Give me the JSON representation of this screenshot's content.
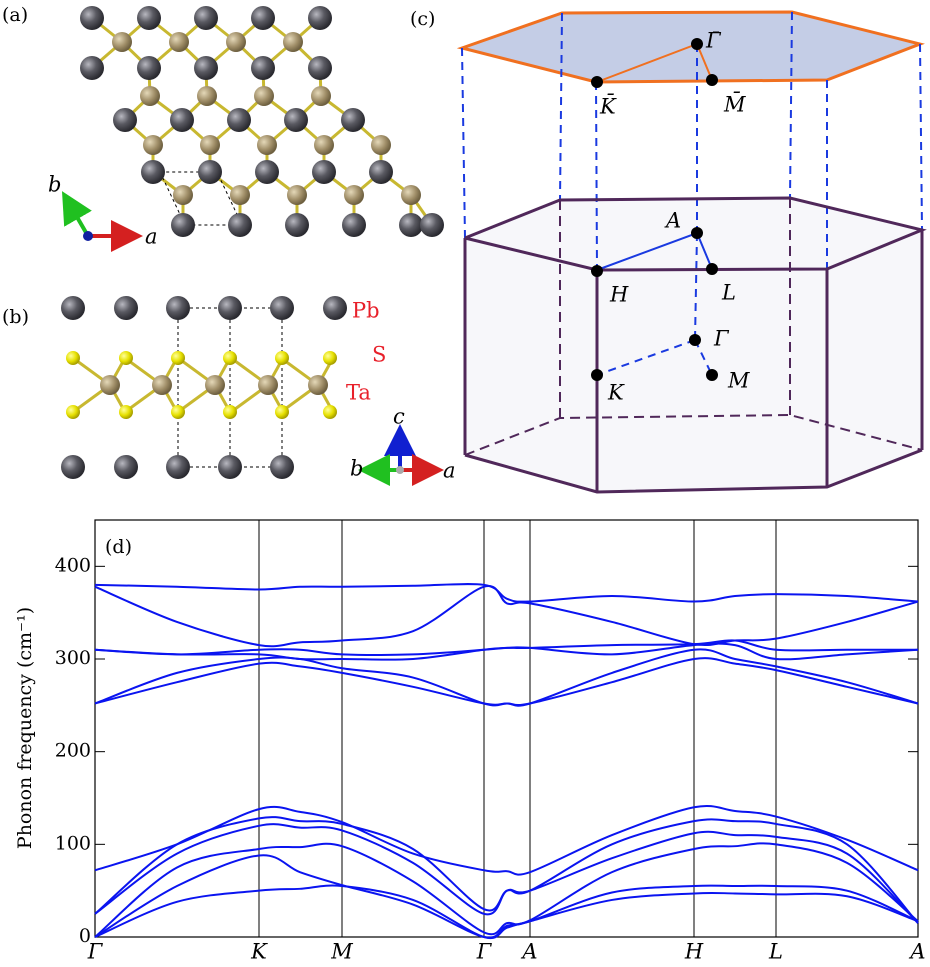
{
  "panels": {
    "a": {
      "label": "(a)",
      "axis_a": "a",
      "axis_b": "b"
    },
    "b": {
      "label": "(b)",
      "elements": [
        "Pb",
        "S",
        "Ta"
      ],
      "axis_c": "c",
      "axis_b": "b",
      "axis_a": "a"
    },
    "c": {
      "label": "(c)",
      "surface_points": [
        "Γ̄",
        "K̄",
        "M̄"
      ],
      "bulk_points": [
        "A",
        "H",
        "L",
        "Γ",
        "K",
        "M"
      ]
    }
  },
  "chart_data": {
    "type": "line",
    "label": "(d)",
    "y_label": "Phonon frequency (cm⁻¹)",
    "x": [
      0,
      82,
      164,
      205,
      247,
      318,
      389,
      412,
      435,
      517,
      599,
      640,
      681,
      752,
      823
    ],
    "xlim": [
      0,
      823
    ],
    "xticks": [
      {
        "value": 0,
        "label": "Γ"
      },
      {
        "value": 164,
        "label": "K"
      },
      {
        "value": 247,
        "label": "M"
      },
      {
        "value": 389,
        "label": "Γ"
      },
      {
        "value": 435,
        "label": "A"
      },
      {
        "value": 599,
        "label": "H"
      },
      {
        "value": 681,
        "label": "L"
      },
      {
        "value": 823,
        "label": "A"
      }
    ],
    "ylim": [
      0,
      450
    ],
    "yticks": [
      0,
      100,
      200,
      300,
      400
    ],
    "color": "#0a14f0",
    "series": [
      {
        "values": [
          0,
          38,
          50,
          52,
          55,
          40,
          0,
          10,
          17,
          40,
          47,
          47,
          46,
          44,
          17
        ]
      },
      {
        "values": [
          0,
          55,
          88,
          70,
          56,
          35,
          0,
          12,
          17,
          48,
          55,
          55,
          55,
          50,
          17
        ]
      },
      {
        "values": [
          0,
          75,
          95,
          97,
          98,
          60,
          5,
          15,
          18,
          70,
          95,
          98,
          100,
          80,
          17
        ]
      },
      {
        "values": [
          25,
          90,
          120,
          118,
          115,
          80,
          25,
          50,
          50,
          85,
          112,
          110,
          108,
          90,
          15
        ]
      },
      {
        "values": [
          25,
          100,
          128,
          125,
          122,
          95,
          30,
          50,
          50,
          100,
          125,
          125,
          122,
          100,
          15
        ]
      },
      {
        "values": [
          72,
          100,
          138,
          135,
          124,
          90,
          72,
          71,
          70,
          110,
          140,
          136,
          130,
          105,
          72
        ]
      },
      {
        "values": [
          252,
          275,
          295,
          292,
          285,
          270,
          252,
          252,
          252,
          275,
          300,
          295,
          288,
          270,
          252
        ]
      },
      {
        "values": [
          252,
          285,
          300,
          300,
          290,
          280,
          252,
          252,
          252,
          285,
          310,
          300,
          292,
          275,
          252
        ]
      },
      {
        "values": [
          310,
          305,
          305,
          300,
          300,
          300,
          310,
          312,
          312,
          305,
          315,
          315,
          300,
          305,
          310
        ]
      },
      {
        "values": [
          310,
          305,
          310,
          310,
          305,
          305,
          310,
          312,
          312,
          315,
          316,
          320,
          310,
          310,
          310
        ]
      },
      {
        "values": [
          378,
          340,
          315,
          318,
          320,
          330,
          378,
          360,
          360,
          340,
          316,
          320,
          322,
          340,
          362
        ]
      },
      {
        "values": [
          380,
          378,
          375,
          378,
          378,
          379,
          380,
          365,
          362,
          368,
          362,
          368,
          370,
          368,
          362
        ]
      }
    ]
  }
}
